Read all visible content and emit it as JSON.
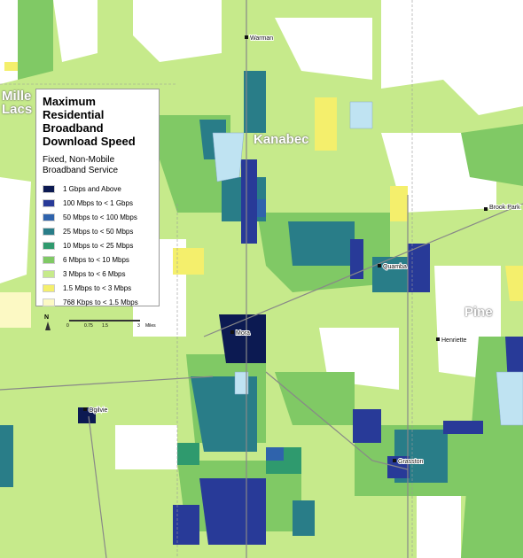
{
  "legend": {
    "title": "Maximum Residential Broadband Download Speed",
    "subtitle": "Fixed, Non-Mobile Broadband Service",
    "items": [
      {
        "label": "1 Gbps and Above",
        "color": "#0c1a52"
      },
      {
        "label": "100 Mbps to < 1 Gbps",
        "color": "#283a98"
      },
      {
        "label": "50 Mbps to < 100 Mbps",
        "color": "#2f63ac"
      },
      {
        "label": "25 Mbps to < 50 Mbps",
        "color": "#297d88"
      },
      {
        "label": "10 Mbps to < 25 Mbps",
        "color": "#2f9a6e"
      },
      {
        "label": "6 Mbps to < 10 Mbps",
        "color": "#80c965"
      },
      {
        "label": "3 Mbps to < 6 Mbps",
        "color": "#c6ea8b"
      },
      {
        "label": "1.5 Mbps to < 3 Mbps",
        "color": "#f4ef6c"
      },
      {
        "label": "768 Kbps to < 1.5 Mbps",
        "color": "#fcf9c4"
      }
    ],
    "north": "N",
    "scale": {
      "ticks": [
        "0",
        "0.75",
        "1.5",
        "3"
      ],
      "unit": "Miles"
    }
  },
  "counties": [
    {
      "name": "Mille Lacs"
    },
    {
      "name": "Kanabec"
    },
    {
      "name": "Pine"
    }
  ],
  "towns": [
    {
      "name": "Warman"
    },
    {
      "name": "Brook Park"
    },
    {
      "name": "Quamba"
    },
    {
      "name": "Henriette"
    },
    {
      "name": "Mora"
    },
    {
      "name": "Ogilvie"
    },
    {
      "name": "Grasston"
    }
  ]
}
